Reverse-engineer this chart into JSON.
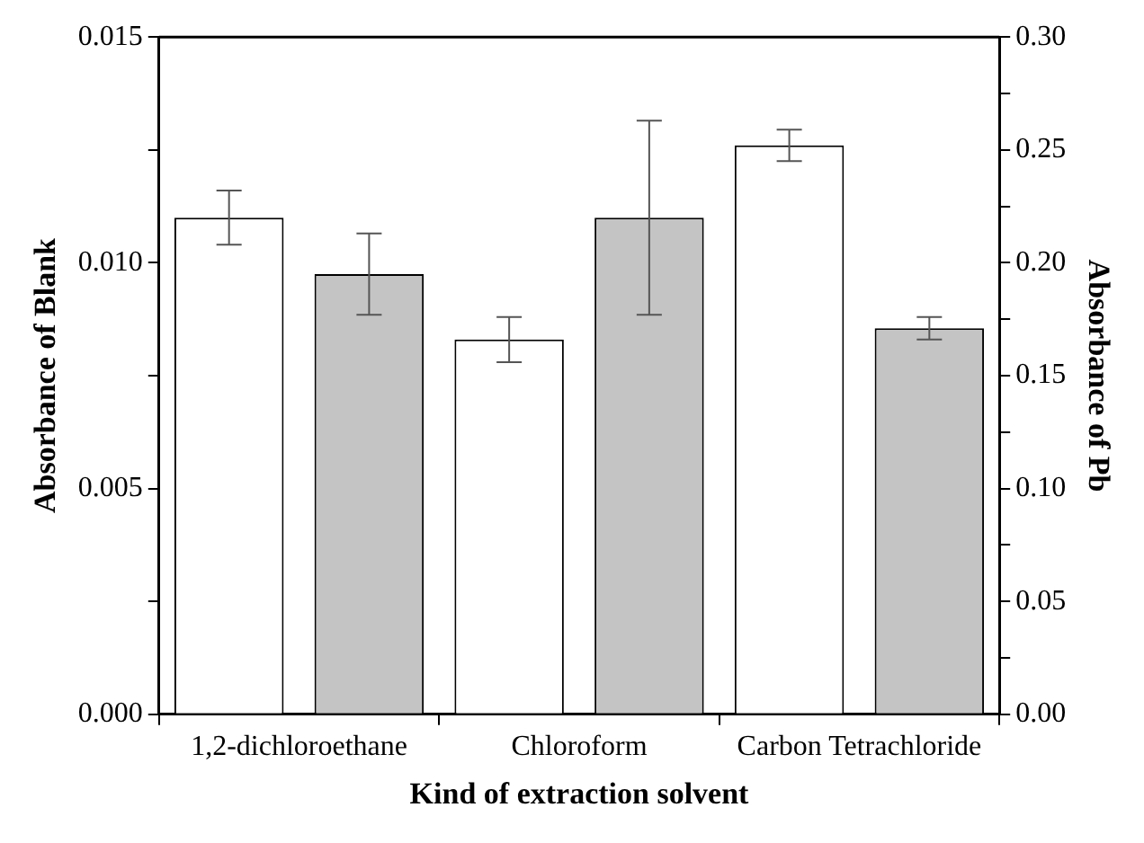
{
  "chart_data": {
    "type": "bar",
    "xlabel": "Kind of extraction solvent",
    "ylabel": "Absorbance of Blank",
    "y2label": "Absorbance of Pb",
    "categories": [
      "1,2-dichloroethane",
      "Chloroform",
      "Carbon Tetrachloride"
    ],
    "series": [
      {
        "color": "#ffffff",
        "values": [
          0.011,
          0.0083,
          0.0126
        ],
        "errors": [
          0.0006,
          0.0005,
          0.00035
        ]
      },
      {
        "color": "#c4c4c4",
        "axis": "y2",
        "values": [
          0.195,
          0.22,
          0.171
        ],
        "errors": [
          0.018,
          0.043,
          0.005
        ]
      }
    ],
    "ylim": [
      0,
      0.015
    ],
    "yticks": [
      {
        "value": 0,
        "label": "0.000"
      },
      {
        "value": 0.0025,
        "label": null
      },
      {
        "value": 0.005,
        "label": "0.005"
      },
      {
        "value": 0.0075,
        "label": null
      },
      {
        "value": 0.01,
        "label": "0.010"
      },
      {
        "value": 0.0125,
        "label": null
      },
      {
        "value": 0.015,
        "label": "0.015"
      }
    ],
    "y2lim": [
      0,
      0.3
    ],
    "y2ticks": [
      {
        "value": 0,
        "label": "0.00"
      },
      {
        "value": 0.025,
        "label": null
      },
      {
        "value": 0.05,
        "label": "0.05"
      },
      {
        "value": 0.075,
        "label": null
      },
      {
        "value": 0.1,
        "label": "0.10"
      },
      {
        "value": 0.125,
        "label": null
      },
      {
        "value": 0.15,
        "label": "0.15"
      },
      {
        "value": 0.175,
        "label": null
      },
      {
        "value": 0.2,
        "label": "0.20"
      },
      {
        "value": 0.225,
        "label": null
      },
      {
        "value": 0.25,
        "label": "0.25"
      },
      {
        "value": 0.275,
        "label": null
      },
      {
        "value": 0.3,
        "label": "0.30"
      }
    ],
    "grid": false,
    "legend": false
  }
}
